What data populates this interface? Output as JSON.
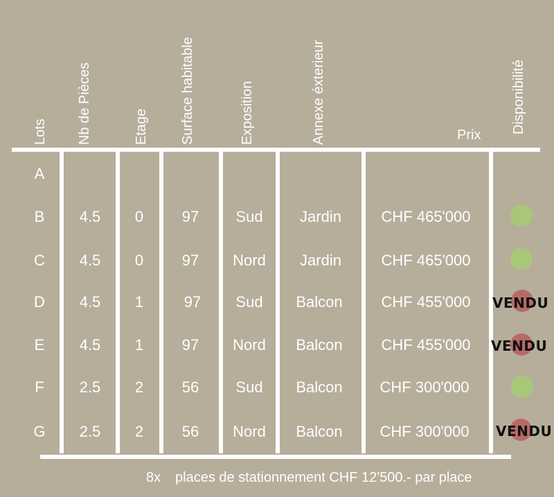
{
  "headers": {
    "lots": "Lots",
    "pieces": "Nb de Pièces",
    "etage": "Etage",
    "surface": "Surface habitable",
    "exposition": "Exposition",
    "annexe": "Annexe éxterieur",
    "prix": "Prix",
    "disponibilite": "Disponibilité"
  },
  "rows": [
    {
      "lot": "A",
      "pieces": "",
      "etage": "",
      "surface": "",
      "exposition": "",
      "annexe": "",
      "prix": "",
      "status": "none",
      "status_label": ""
    },
    {
      "lot": "B",
      "pieces": "4.5",
      "etage": "0",
      "surface": "97",
      "exposition": "Sud",
      "annexe": "Jardin",
      "prix": "CHF 465'000",
      "status": "available",
      "status_label": ""
    },
    {
      "lot": "C",
      "pieces": "4.5",
      "etage": "0",
      "surface": "97",
      "exposition": "Nord",
      "annexe": "Jardin",
      "prix": "CHF 465'000",
      "status": "available",
      "status_label": ""
    },
    {
      "lot": "D",
      "pieces": "4.5",
      "etage": "1",
      "surface": "97",
      "exposition": "Sud",
      "annexe": "Balcon",
      "prix": "CHF 455'000",
      "status": "sold",
      "status_label": "VENDU"
    },
    {
      "lot": "E",
      "pieces": "4.5",
      "etage": "1",
      "surface": "97",
      "exposition": "Nord",
      "annexe": "Balcon",
      "prix": "CHF 455'000",
      "status": "sold",
      "status_label": "VENDU"
    },
    {
      "lot": "F",
      "pieces": "2.5",
      "etage": "2",
      "surface": "56",
      "exposition": "Sud",
      "annexe": "Balcon",
      "prix": "CHF 300'000",
      "status": "available",
      "status_label": ""
    },
    {
      "lot": "G",
      "pieces": "2.5",
      "etage": "2",
      "surface": "56",
      "exposition": "Nord",
      "annexe": "Balcon",
      "prix": "CHF 300'000",
      "status": "sold",
      "status_label": "VENDU"
    }
  ],
  "status_colors": {
    "available": "#a8c877",
    "sold": "#b76a68"
  },
  "footer": {
    "quantity": "8x",
    "text": "places de stationnement CHF 12'500.- par place"
  }
}
